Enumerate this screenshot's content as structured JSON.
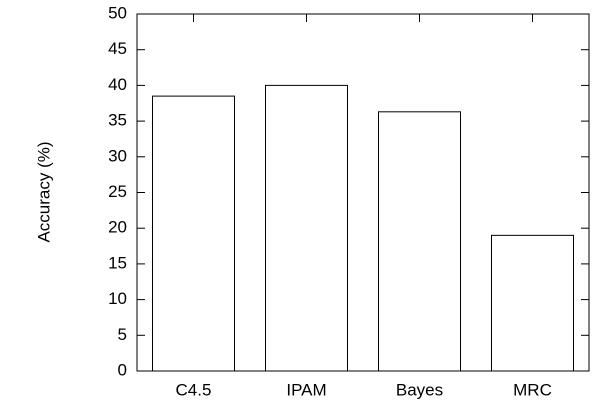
{
  "chart_data": {
    "type": "bar",
    "title": "",
    "xlabel": "",
    "ylabel": "Accuracy (%)",
    "categories": [
      "C4.5",
      "IPAM",
      "Bayes",
      "MRC"
    ],
    "values": [
      38.5,
      40.0,
      36.3,
      19.0
    ],
    "ylim": [
      0,
      50
    ],
    "yticks": [
      "0",
      "5",
      "10",
      "15",
      "20",
      "25",
      "30",
      "35",
      "40",
      "45",
      "50"
    ],
    "grid": false,
    "legend": "none",
    "colors": {
      "bar_fill": "#ffffff",
      "bar_stroke": "#000000",
      "axis": "#000000"
    }
  }
}
